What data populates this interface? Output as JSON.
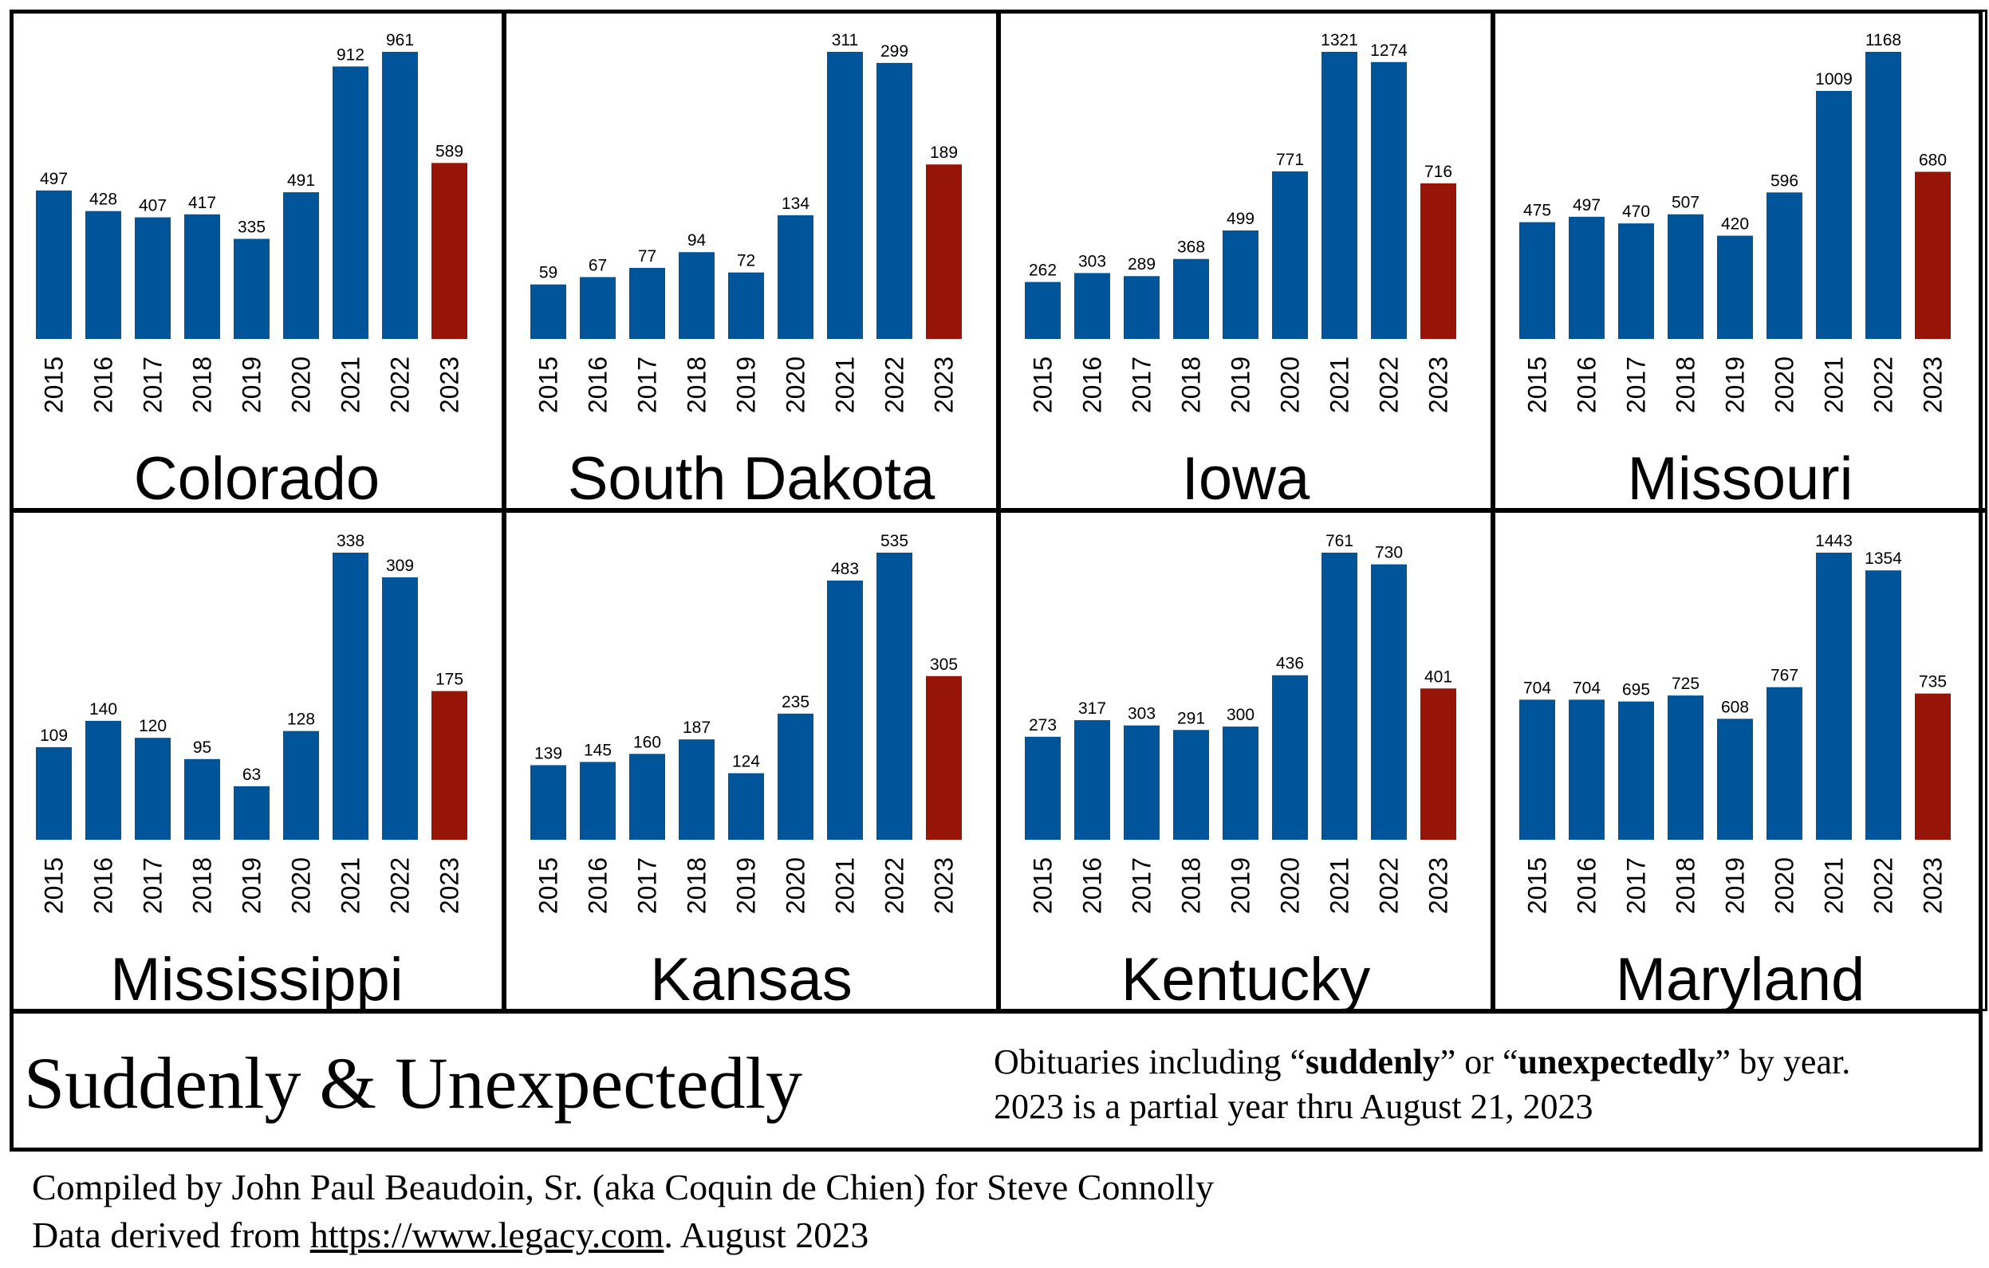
{
  "chart_data": [
    {
      "type": "bar",
      "title": "Colorado",
      "categories": [
        "2015",
        "2016",
        "2017",
        "2018",
        "2019",
        "2020",
        "2021",
        "2022",
        "2023"
      ],
      "values": [
        497,
        428,
        407,
        417,
        335,
        491,
        912,
        961,
        589
      ],
      "ylim": [
        0,
        961
      ]
    },
    {
      "type": "bar",
      "title": "South Dakota",
      "categories": [
        "2015",
        "2016",
        "2017",
        "2018",
        "2019",
        "2020",
        "2021",
        "2022",
        "2023"
      ],
      "values": [
        59,
        67,
        77,
        94,
        72,
        134,
        311,
        299,
        189
      ],
      "ylim": [
        0,
        311
      ]
    },
    {
      "type": "bar",
      "title": "Iowa",
      "categories": [
        "2015",
        "2016",
        "2017",
        "2018",
        "2019",
        "2020",
        "2021",
        "2022",
        "2023"
      ],
      "values": [
        262,
        303,
        289,
        368,
        499,
        771,
        1321,
        1274,
        716
      ],
      "ylim": [
        0,
        1321
      ]
    },
    {
      "type": "bar",
      "title": "Missouri",
      "categories": [
        "2015",
        "2016",
        "2017",
        "2018",
        "2019",
        "2020",
        "2021",
        "2022",
        "2023"
      ],
      "values": [
        475,
        497,
        470,
        507,
        420,
        596,
        1009,
        1168,
        680
      ],
      "ylim": [
        0,
        1168
      ]
    },
    {
      "type": "bar",
      "title": "Mississippi",
      "categories": [
        "2015",
        "2016",
        "2017",
        "2018",
        "2019",
        "2020",
        "2021",
        "2022",
        "2023"
      ],
      "values": [
        109,
        140,
        120,
        95,
        63,
        128,
        338,
        309,
        175
      ],
      "ylim": [
        0,
        338
      ]
    },
    {
      "type": "bar",
      "title": "Kansas",
      "categories": [
        "2015",
        "2016",
        "2017",
        "2018",
        "2019",
        "2020",
        "2021",
        "2022",
        "2023"
      ],
      "values": [
        139,
        145,
        160,
        187,
        124,
        235,
        483,
        535,
        305
      ],
      "ylim": [
        0,
        535
      ]
    },
    {
      "type": "bar",
      "title": "Kentucky",
      "categories": [
        "2015",
        "2016",
        "2017",
        "2018",
        "2019",
        "2020",
        "2021",
        "2022",
        "2023"
      ],
      "values": [
        273,
        317,
        303,
        291,
        300,
        436,
        761,
        730,
        401
      ],
      "ylim": [
        0,
        761
      ]
    },
    {
      "type": "bar",
      "title": "Maryland",
      "categories": [
        "2015",
        "2016",
        "2017",
        "2018",
        "2019",
        "2020",
        "2021",
        "2022",
        "2023"
      ],
      "values": [
        704,
        704,
        695,
        725,
        608,
        767,
        1443,
        1354,
        735
      ],
      "ylim": [
        0,
        1443
      ]
    }
  ],
  "colors": {
    "bar": "#00549a",
    "bar_partial": "#971409"
  },
  "caption": {
    "title": "Suddenly & Unexpectedly",
    "line1_a": "Obituaries including “",
    "line1_b": "suddenly",
    "line1_c": "” or “",
    "line1_d": "unexpectedly",
    "line1_e": "” by year.",
    "line2": "2023 is a partial year thru August 21, 2023"
  },
  "credits": {
    "line1": "Compiled by John Paul Beaudoin, Sr. (aka Coquin de Chien) for Steve Connolly",
    "line2_a": "Data derived from ",
    "link": "https://www.legacy.com",
    "line2_b": ". August 2023"
  }
}
